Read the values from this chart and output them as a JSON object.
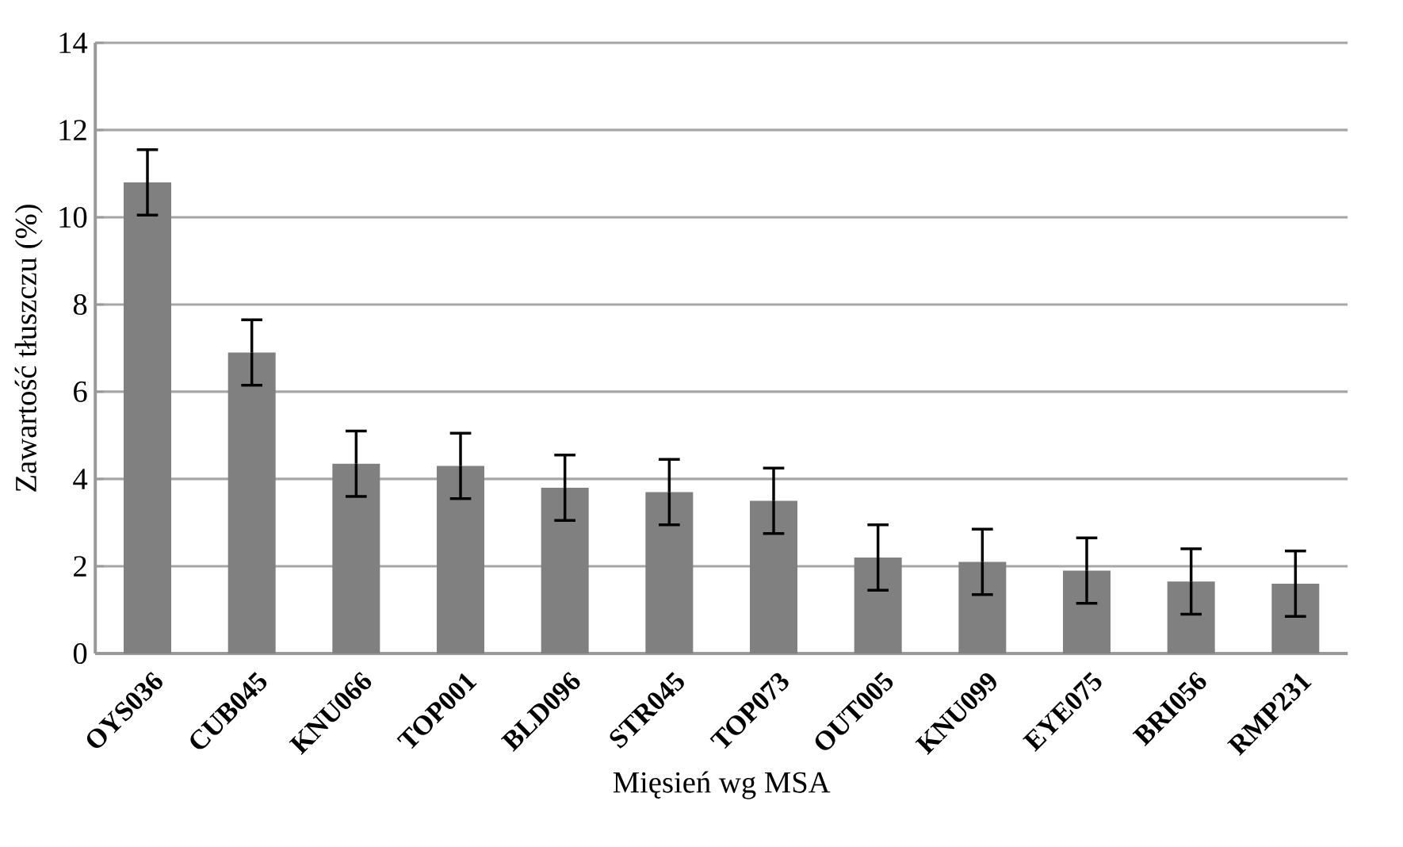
{
  "chart_data": {
    "type": "bar",
    "xlabel": "Mięsień wg MSA",
    "ylabel": "Zawartość tłuszczu (%)",
    "categories": [
      "OYS036",
      "CUB045",
      "KNU066",
      "TOP001",
      "BLD096",
      "STR045",
      "TOP073",
      "OUT005",
      "KNU099",
      "EYE075",
      "BRI056",
      "RMP231"
    ],
    "values": [
      10.8,
      6.9,
      4.35,
      4.3,
      3.8,
      3.7,
      3.5,
      2.2,
      2.1,
      1.9,
      1.65,
      1.6
    ],
    "errors": [
      0.75,
      0.75,
      0.75,
      0.75,
      0.75,
      0.75,
      0.75,
      0.75,
      0.75,
      0.75,
      0.75,
      0.75
    ],
    "color": "#808080",
    "ylim": [
      0,
      14
    ],
    "yticks": [
      0,
      2,
      4,
      6,
      8,
      10,
      12,
      14
    ],
    "grid": "y"
  }
}
